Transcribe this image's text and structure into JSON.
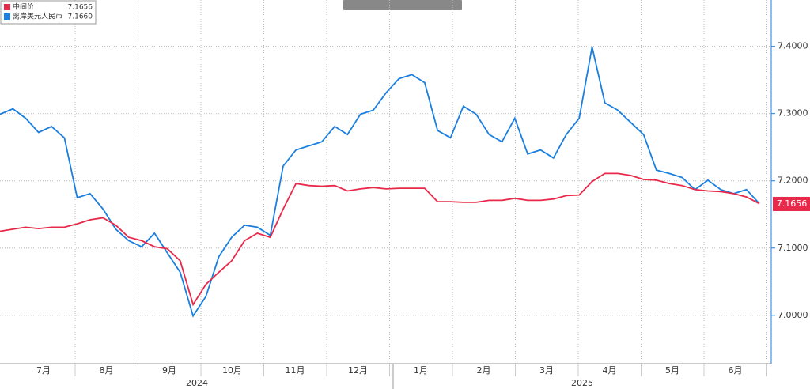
{
  "chart_data": {
    "type": "line",
    "months": [
      "7月",
      "8月",
      "9月",
      "10月",
      "11月",
      "12月",
      "1月",
      "2月",
      "3月",
      "4月",
      "5月",
      "6月"
    ],
    "years": [
      "2024",
      "2025"
    ],
    "ylim": [
      6.928,
      7.469
    ],
    "yticks": [
      {
        "value": 7.0,
        "label": "7.0000"
      },
      {
        "value": 7.1,
        "label": "7.1000"
      },
      {
        "value": 7.2,
        "label": "7.2000"
      },
      {
        "value": 7.3,
        "label": "7.3000"
      },
      {
        "value": 7.4,
        "label": "7.4000"
      }
    ],
    "grid": true,
    "legend": "top-left",
    "last_value_tag": {
      "value": 7.1656,
      "label": "7.1656",
      "color": "#e8294a"
    },
    "series": [
      {
        "name": "中间价",
        "legend_value": "7.1656",
        "color": "#e8294a",
        "values": [
          7.125,
          7.128,
          7.131,
          7.129,
          7.131,
          7.131,
          7.136,
          7.142,
          7.145,
          7.134,
          7.116,
          7.111,
          7.102,
          7.099,
          7.081,
          7.016,
          7.046,
          7.064,
          7.081,
          7.111,
          7.122,
          7.116,
          7.158,
          7.196,
          7.193,
          7.192,
          7.193,
          7.185,
          7.188,
          7.19,
          7.188,
          7.189,
          7.189,
          7.189,
          7.169,
          7.169,
          7.168,
          7.168,
          7.171,
          7.171,
          7.174,
          7.171,
          7.171,
          7.173,
          7.178,
          7.179,
          7.199,
          7.211,
          7.211,
          7.208,
          7.202,
          7.201,
          7.196,
          7.193,
          7.187,
          7.185,
          7.184,
          7.181,
          7.176,
          7.166
        ]
      },
      {
        "name": "离岸美元人民币",
        "legend_value": "7.1660",
        "color": "#1a7fe0",
        "values": [
          7.299,
          7.307,
          7.293,
          7.272,
          7.281,
          7.264,
          7.175,
          7.181,
          7.158,
          7.128,
          7.111,
          7.102,
          7.122,
          7.093,
          7.064,
          6.999,
          7.028,
          7.087,
          7.116,
          7.134,
          7.131,
          7.119,
          7.222,
          7.246,
          7.252,
          7.258,
          7.281,
          7.269,
          7.299,
          7.305,
          7.331,
          7.352,
          7.358,
          7.346,
          7.275,
          7.264,
          7.311,
          7.299,
          7.269,
          7.258,
          7.293,
          7.24,
          7.246,
          7.234,
          7.269,
          7.293,
          7.399,
          7.316,
          7.305,
          7.287,
          7.269,
          7.216,
          7.211,
          7.205,
          7.187,
          7.201,
          7.187,
          7.181,
          7.187,
          7.166
        ]
      }
    ]
  }
}
